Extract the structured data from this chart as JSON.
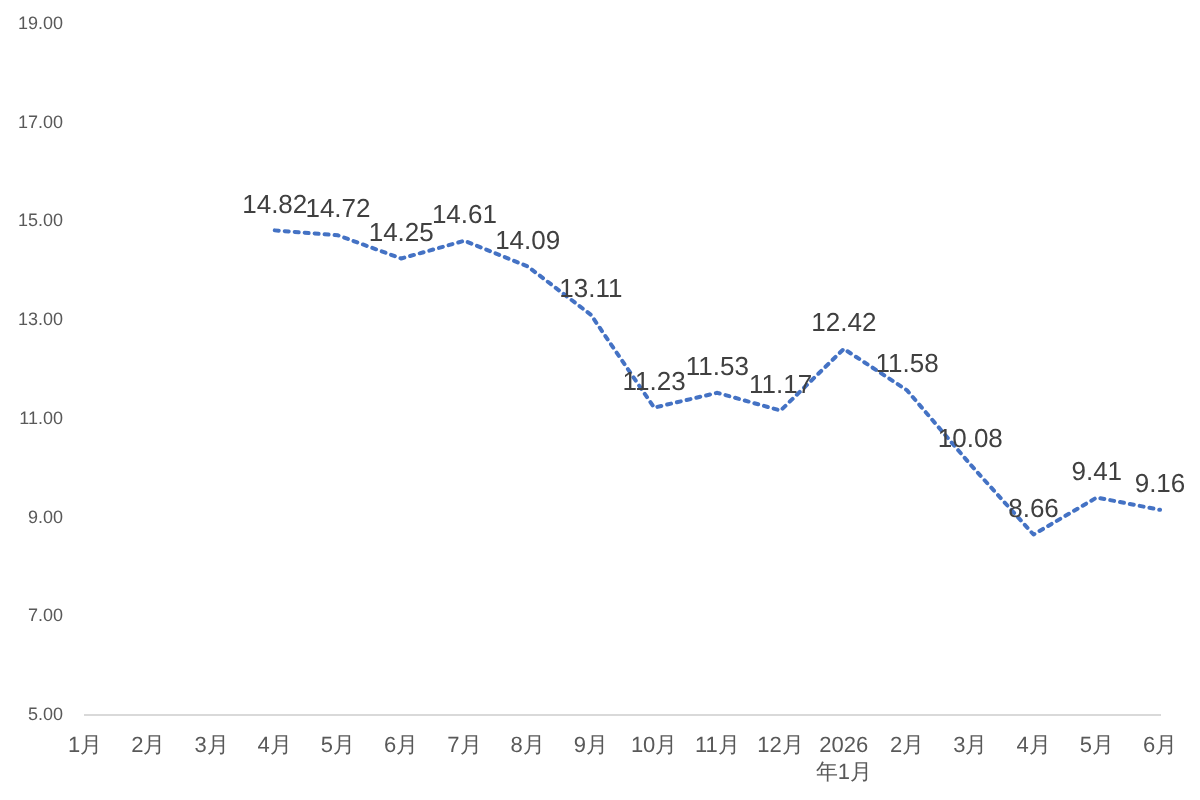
{
  "chart_data": {
    "type": "line",
    "categories": [
      "1月",
      "2月",
      "3月",
      "4月",
      "5月",
      "6月",
      "7月",
      "8月",
      "9月",
      "10月",
      "11月",
      "12月",
      "2026年1月",
      "2月",
      "3月",
      "4月",
      "5月",
      "6月"
    ],
    "values": [
      null,
      null,
      null,
      14.82,
      14.72,
      14.25,
      14.61,
      14.09,
      13.11,
      11.23,
      11.53,
      11.17,
      12.42,
      11.58,
      10.08,
      8.66,
      9.41,
      9.16
    ],
    "color": "#4472c4",
    "line_style": "dotted",
    "marker": "none",
    "data_labels": true,
    "grid": false,
    "legend": false,
    "ylim": [
      5,
      19
    ],
    "yticks": [
      {
        "value": 5,
        "label": "5.00"
      },
      {
        "value": 7,
        "label": "7.00"
      },
      {
        "value": 9,
        "label": "9.00"
      },
      {
        "value": 11,
        "label": "11.00"
      },
      {
        "value": 13,
        "label": "13.00"
      },
      {
        "value": 15,
        "label": "15.00"
      },
      {
        "value": 17,
        "label": "17.00"
      },
      {
        "value": 19,
        "label": "19.00"
      }
    ]
  }
}
